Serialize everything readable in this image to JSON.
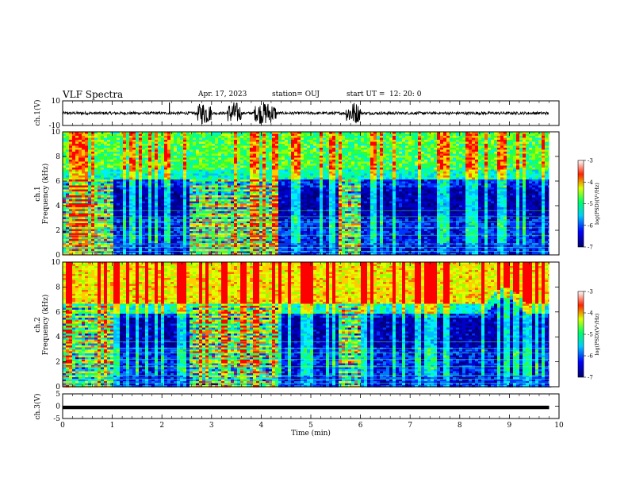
{
  "header": {
    "title": "VLF Spectra",
    "date": "Apr. 17, 2023",
    "station": "station= OUJ",
    "start_label": "start UT =",
    "start_time": "12: 20: 0"
  },
  "chart_data": [
    {
      "type": "line",
      "panel": "ch1-waveform",
      "ylabel": "ch.1(V)",
      "ylim": [
        -10,
        10
      ],
      "y_ticks": [
        "10",
        "-10"
      ],
      "xlim": [
        0,
        10
      ],
      "description_values": {
        "baseline_amplitude": 1.2,
        "burst_windows_min": [
          [
            2.7,
            3.0
          ],
          [
            3.3,
            3.6
          ],
          [
            3.85,
            4.3
          ],
          [
            5.7,
            6.0
          ]
        ]
      }
    },
    {
      "type": "heatmap",
      "panel": "ch1-spectrogram",
      "ylabel_top": "ch.1",
      "ylabel": "Frequency (kHz)",
      "ylim": [
        0,
        10
      ],
      "y_ticks": [
        "0",
        "2",
        "4",
        "6",
        "8",
        "10"
      ],
      "xlim": [
        0,
        9.8
      ],
      "colorbar": {
        "label": "log(PSD)(V²/Hz)",
        "range": [
          -7,
          -3
        ],
        "ticks": [
          "-3",
          "-4",
          "-5",
          "-6",
          "-7"
        ]
      },
      "band_edges_khz": {
        "upper_noise_floor": 6.2,
        "dark_band": [
          3.5,
          5.5
        ]
      },
      "activity_windows_min": [
        [
          0,
          1.0
        ],
        [
          2.5,
          3.5
        ],
        [
          3.5,
          4.3
        ],
        [
          5.5,
          6.0
        ]
      ]
    },
    {
      "type": "heatmap",
      "panel": "ch2-spectrogram",
      "ylabel_top": "ch.2",
      "ylabel": "Frequency (kHz)",
      "ylim": [
        0,
        10
      ],
      "y_ticks": [
        "0",
        "2",
        "4",
        "6",
        "8",
        "10"
      ],
      "xlim": [
        0,
        9.8
      ],
      "colorbar": {
        "label": "log(PSD)(V²/Hz)",
        "range": [
          -7,
          -3
        ],
        "ticks": [
          "-3",
          "-4",
          "-5",
          "-6",
          "-7"
        ]
      },
      "band_edges_khz": {
        "upper_noise_floor": 6.0
      },
      "activity_windows_min": [
        [
          0,
          1.0
        ],
        [
          2.5,
          3.5
        ],
        [
          3.5,
          4.3
        ],
        [
          5.5,
          6.0
        ]
      ]
    },
    {
      "type": "line",
      "panel": "ch3-waveform",
      "ylabel": "ch.3(V)",
      "ylim": [
        -5,
        5
      ],
      "y_ticks": [
        "5",
        "0",
        "-5"
      ],
      "xlim": [
        0,
        10
      ],
      "xlabel": "Time (min)",
      "x_ticks": [
        "0",
        "1",
        "2",
        "3",
        "4",
        "5",
        "6",
        "7",
        "8",
        "9",
        "10"
      ],
      "constant_value": -0.5
    }
  ]
}
